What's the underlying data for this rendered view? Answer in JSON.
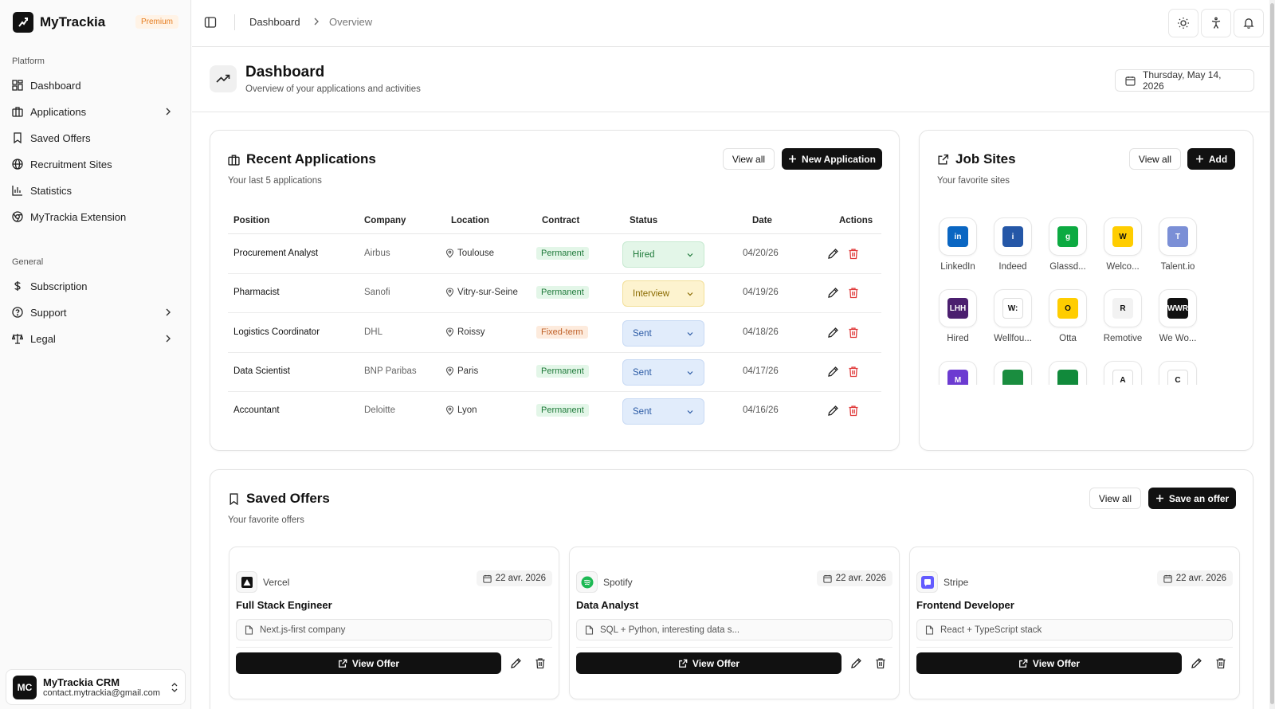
{
  "app": {
    "name": "MyTrackia",
    "badge": "Premium"
  },
  "sidebar": {
    "platform_label": "Platform",
    "general_label": "General",
    "platform_items": [
      {
        "label": "Dashboard",
        "icon": "layout-grid-icon"
      },
      {
        "label": "Applications",
        "icon": "briefcase-icon"
      },
      {
        "label": "Saved Offers",
        "icon": "bookmark-icon"
      },
      {
        "label": "Recruitment Sites",
        "icon": "globe-icon"
      },
      {
        "label": "Statistics",
        "icon": "bar-chart-icon"
      },
      {
        "label": "MyTrackia Extension",
        "icon": "chrome-icon"
      }
    ],
    "general_items": [
      {
        "label": "Subscription",
        "icon": "dollar-icon"
      },
      {
        "label": "Support",
        "icon": "help-circle-icon"
      },
      {
        "label": "Legal",
        "icon": "scale-icon"
      }
    ],
    "user": {
      "initials": "MC",
      "name": "MyTrackia CRM",
      "email": "contact.mytrackia@gmail.com"
    }
  },
  "topbar": {
    "breadcrumb": [
      "Dashboard",
      "Overview"
    ]
  },
  "header": {
    "title": "Dashboard",
    "subtitle": "Overview of your applications and activities",
    "date": "Thursday, May 14, 2026"
  },
  "recent": {
    "title": "Recent Applications",
    "subtitle": "Your last 5 applications",
    "view_all": "View all",
    "new_label": "New Application",
    "columns": [
      "Position",
      "Company",
      "Location",
      "Contract",
      "Status",
      "Date",
      "Actions"
    ],
    "rows": [
      {
        "position": "Procurement Analyst",
        "company": "Airbus",
        "location": "Toulouse",
        "contract": "Permanent",
        "status": "Hired",
        "date": "04/20/26"
      },
      {
        "position": "Pharmacist",
        "company": "Sanofi",
        "location": "Vitry-sur-Seine",
        "contract": "Permanent",
        "status": "Interview",
        "date": "04/19/26"
      },
      {
        "position": "Logistics Coordinator",
        "company": "DHL",
        "location": "Roissy",
        "contract": "Fixed-term",
        "status": "Sent",
        "date": "04/18/26"
      },
      {
        "position": "Data Scientist",
        "company": "BNP Paribas",
        "location": "Paris",
        "contract": "Permanent",
        "status": "Sent",
        "date": "04/17/26"
      },
      {
        "position": "Accountant",
        "company": "Deloitte",
        "location": "Lyon",
        "contract": "Permanent",
        "status": "Sent",
        "date": "04/16/26"
      }
    ]
  },
  "jobsites": {
    "title": "Job Sites",
    "subtitle": "Your favorite sites",
    "view_all": "View all",
    "add_label": "Add",
    "sites": [
      {
        "name": "LinkedIn",
        "logo": "in",
        "color": "#0a66c2"
      },
      {
        "name": "Indeed",
        "logo": "i",
        "color": "#2557a7"
      },
      {
        "name": "Glassd...",
        "logo": "g",
        "color": "#0caa41"
      },
      {
        "name": "Welco...",
        "logo": "W",
        "color": "#ffcd00"
      },
      {
        "name": "Talent.io",
        "logo": "T",
        "color": "#7b8fd6"
      },
      {
        "name": "Hired",
        "logo": "LHH",
        "color": "#4b1f6f"
      },
      {
        "name": "Wellfou...",
        "logo": "W:",
        "color": "#ffffff"
      },
      {
        "name": "Otta",
        "logo": "O",
        "color": "#ffcd00"
      },
      {
        "name": "Remotive",
        "logo": "R",
        "color": "#f2f2f2"
      },
      {
        "name": "We Wo...",
        "logo": "WWR",
        "color": "#111111"
      },
      {
        "name": "",
        "logo": "M",
        "color": "#6c3bd1"
      },
      {
        "name": "",
        "logo": "",
        "color": "#1a8d3f"
      },
      {
        "name": "",
        "logo": "",
        "color": "#118a3b"
      },
      {
        "name": "",
        "logo": "A",
        "color": "#ffffff"
      },
      {
        "name": "",
        "logo": "C",
        "color": "#ffffff"
      }
    ]
  },
  "saved": {
    "title": "Saved Offers",
    "subtitle": "Your favorite offers",
    "view_all": "View all",
    "save_label": "Save an offer",
    "offers": [
      {
        "company": "Vercel",
        "date": "22 avr. 2026",
        "title": "Full Stack Engineer",
        "note": "Next.js-first company",
        "view_label": "View Offer"
      },
      {
        "company": "Spotify",
        "date": "22 avr. 2026",
        "title": "Data Analyst",
        "note": "SQL + Python, interesting data s...",
        "view_label": "View Offer"
      },
      {
        "company": "Stripe",
        "date": "22 avr. 2026",
        "title": "Frontend Developer",
        "note": "React + TypeScript stack",
        "view_label": "View Offer"
      }
    ]
  },
  "colors": {
    "hired_bg": "#e3f6e8",
    "hired_text": "#1f7a3a",
    "interview_bg": "#fdf3cf",
    "interview_text": "#8a6a00",
    "sent_bg": "#e1ecfb",
    "sent_text": "#2b5aa5",
    "permanent_bg": "#e3f6e8",
    "permanent_text": "#1f7a3a",
    "fixed_bg": "#fdebdd",
    "fixed_text": "#c0622a",
    "delete": "#e03b3b"
  }
}
